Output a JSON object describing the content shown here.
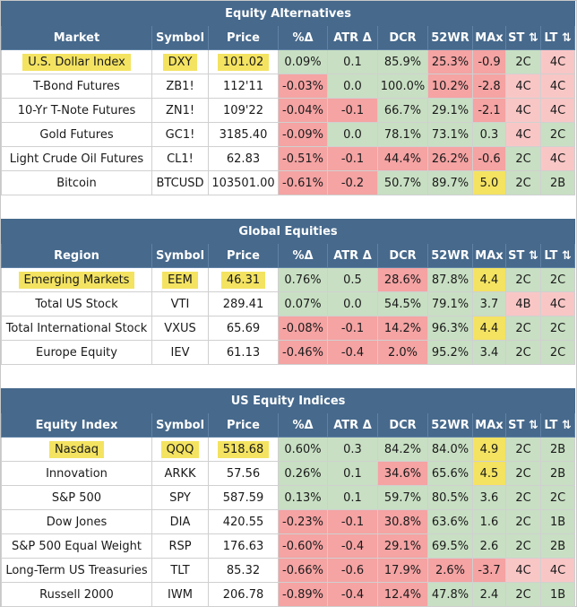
{
  "colors": {
    "header": "#46698c",
    "green": "#c8dfc3",
    "red": "#f5a3a3",
    "light_red": "#f9c6c6",
    "yellow": "#f3e361"
  },
  "sections": [
    {
      "title": "Equity Alternatives",
      "headers": [
        "Market",
        "Symbol",
        "Price",
        "%Δ",
        "ATR Δ",
        "DCR",
        "52WR",
        "MAx",
        "ST ⇅",
        "LT ⇅"
      ],
      "rows": [
        {
          "name": "U.S. Dollar Index",
          "symbol": "DXY",
          "price": "101.02",
          "pct": "0.09%",
          "atr": "0.1",
          "dcr": "85.9%",
          "wr": "25.3%",
          "max": "-0.9",
          "st": "2C",
          "lt": "4C",
          "highlight": true,
          "c": [
            "g",
            "g",
            "g",
            "r",
            "r",
            "g",
            "lr"
          ]
        },
        {
          "name": "T-Bond Futures",
          "symbol": "ZB1!",
          "price": "112'11",
          "pct": "-0.03%",
          "atr": "0.0",
          "dcr": "100.0%",
          "wr": "10.2%",
          "max": "-2.8",
          "st": "4C",
          "lt": "4C",
          "c": [
            "r",
            "g",
            "g",
            "r",
            "r",
            "lr",
            "lr"
          ]
        },
        {
          "name": "10-Yr T-Note Futures",
          "symbol": "ZN1!",
          "price": "109'22",
          "pct": "-0.04%",
          "atr": "-0.1",
          "dcr": "66.7%",
          "wr": "29.1%",
          "max": "-2.1",
          "st": "4C",
          "lt": "4C",
          "c": [
            "r",
            "r",
            "g",
            "g",
            "r",
            "lr",
            "lr"
          ]
        },
        {
          "name": "Gold Futures",
          "symbol": "GC1!",
          "price": "3185.40",
          "pct": "-0.09%",
          "atr": "0.0",
          "dcr": "78.1%",
          "wr": "73.1%",
          "max": "0.3",
          "st": "4C",
          "lt": "2C",
          "c": [
            "r",
            "g",
            "g",
            "g",
            "g",
            "lr",
            "g"
          ]
        },
        {
          "name": "Light Crude Oil Futures",
          "symbol": "CL1!",
          "price": "62.83",
          "pct": "-0.51%",
          "atr": "-0.1",
          "dcr": "44.4%",
          "wr": "26.2%",
          "max": "-0.6",
          "st": "2C",
          "lt": "4C",
          "c": [
            "r",
            "r",
            "r",
            "r",
            "r",
            "g",
            "lr"
          ]
        },
        {
          "name": "Bitcoin",
          "symbol": "BTCUSD",
          "price": "103501.00",
          "pct": "-0.61%",
          "atr": "-0.2",
          "dcr": "50.7%",
          "wr": "89.7%",
          "max": "5.0",
          "st": "2C",
          "lt": "2B",
          "c": [
            "r",
            "r",
            "g",
            "g",
            "y",
            "g",
            "g"
          ]
        }
      ]
    },
    {
      "title": "Global Equities",
      "headers": [
        "Region",
        "Symbol",
        "Price",
        "%Δ",
        "ATR Δ",
        "DCR",
        "52WR",
        "MAx",
        "ST ⇅",
        "LT ⇅"
      ],
      "rows": [
        {
          "name": "Emerging Markets",
          "symbol": "EEM",
          "price": "46.31",
          "pct": "0.76%",
          "atr": "0.5",
          "dcr": "28.6%",
          "wr": "87.8%",
          "max": "4.4",
          "st": "2C",
          "lt": "2C",
          "highlight": true,
          "c": [
            "g",
            "g",
            "r",
            "g",
            "y",
            "g",
            "g"
          ]
        },
        {
          "name": "Total US Stock",
          "symbol": "VTI",
          "price": "289.41",
          "pct": "0.07%",
          "atr": "0.0",
          "dcr": "54.5%",
          "wr": "79.1%",
          "max": "3.7",
          "st": "4B",
          "lt": "4C",
          "c": [
            "g",
            "g",
            "g",
            "g",
            "g",
            "lr",
            "lr"
          ]
        },
        {
          "name": "Total International Stock",
          "symbol": "VXUS",
          "price": "65.69",
          "pct": "-0.08%",
          "atr": "-0.1",
          "dcr": "14.2%",
          "wr": "96.3%",
          "max": "4.4",
          "st": "2C",
          "lt": "2C",
          "c": [
            "r",
            "r",
            "r",
            "g",
            "y",
            "g",
            "g"
          ]
        },
        {
          "name": "Europe Equity",
          "symbol": "IEV",
          "price": "61.13",
          "pct": "-0.46%",
          "atr": "-0.4",
          "dcr": "2.0%",
          "wr": "95.2%",
          "max": "3.4",
          "st": "2C",
          "lt": "2C",
          "c": [
            "r",
            "r",
            "r",
            "g",
            "g",
            "g",
            "g"
          ]
        }
      ]
    },
    {
      "title": "US Equity Indices",
      "headers": [
        "Equity Index",
        "Symbol",
        "Price",
        "%Δ",
        "ATR Δ",
        "DCR",
        "52WR",
        "MAx",
        "ST ⇅",
        "LT ⇅"
      ],
      "rows": [
        {
          "name": "Nasdaq",
          "symbol": "QQQ",
          "price": "518.68",
          "pct": "0.60%",
          "atr": "0.3",
          "dcr": "84.2%",
          "wr": "84.0%",
          "max": "4.9",
          "st": "2C",
          "lt": "2B",
          "highlight": true,
          "c": [
            "g",
            "g",
            "g",
            "g",
            "y",
            "g",
            "g"
          ]
        },
        {
          "name": "Innovation",
          "symbol": "ARKK",
          "price": "57.56",
          "pct": "0.26%",
          "atr": "0.1",
          "dcr": "34.6%",
          "wr": "65.6%",
          "max": "4.5",
          "st": "2C",
          "lt": "2B",
          "c": [
            "g",
            "g",
            "r",
            "g",
            "y",
            "g",
            "g"
          ]
        },
        {
          "name": "S&P 500",
          "symbol": "SPY",
          "price": "587.59",
          "pct": "0.13%",
          "atr": "0.1",
          "dcr": "59.7%",
          "wr": "80.5%",
          "max": "3.6",
          "st": "2C",
          "lt": "2C",
          "c": [
            "g",
            "g",
            "g",
            "g",
            "g",
            "g",
            "g"
          ]
        },
        {
          "name": "Dow Jones",
          "symbol": "DIA",
          "price": "420.55",
          "pct": "-0.23%",
          "atr": "-0.1",
          "dcr": "30.8%",
          "wr": "63.6%",
          "max": "1.6",
          "st": "2C",
          "lt": "1B",
          "c": [
            "r",
            "r",
            "r",
            "g",
            "g",
            "g",
            "g"
          ]
        },
        {
          "name": "S&P 500 Equal Weight",
          "symbol": "RSP",
          "price": "176.63",
          "pct": "-0.60%",
          "atr": "-0.4",
          "dcr": "29.1%",
          "wr": "69.5%",
          "max": "2.6",
          "st": "2C",
          "lt": "2B",
          "c": [
            "r",
            "r",
            "r",
            "g",
            "g",
            "g",
            "g"
          ]
        },
        {
          "name": "Long-Term US Treasuries",
          "symbol": "TLT",
          "price": "85.32",
          "pct": "-0.66%",
          "atr": "-0.6",
          "dcr": "17.9%",
          "wr": "2.6%",
          "max": "-3.7",
          "st": "4C",
          "lt": "4C",
          "c": [
            "r",
            "r",
            "r",
            "r",
            "r",
            "lr",
            "lr"
          ]
        },
        {
          "name": "Russell 2000",
          "symbol": "IWM",
          "price": "206.78",
          "pct": "-0.89%",
          "atr": "-0.4",
          "dcr": "12.4%",
          "wr": "47.8%",
          "max": "2.4",
          "st": "2C",
          "lt": "1B",
          "c": [
            "r",
            "r",
            "r",
            "g",
            "g",
            "g",
            "g"
          ]
        }
      ]
    }
  ]
}
